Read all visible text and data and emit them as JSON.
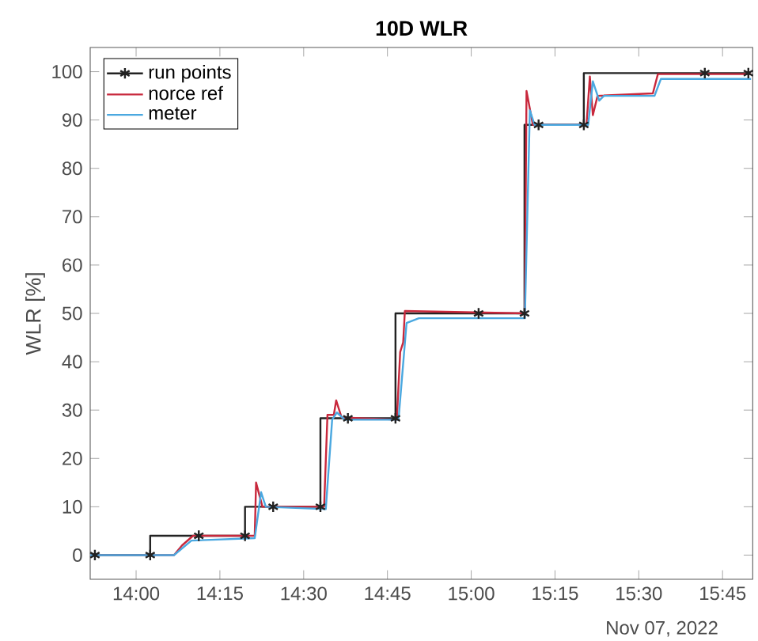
{
  "chart_data": {
    "type": "line",
    "title": "10D WLR",
    "ylabel": "WLR [%]",
    "annotations": [
      "Nov 07, 2022"
    ],
    "xlim": [
      13.863,
      15.84
    ],
    "ylim": [
      -5,
      105
    ],
    "xticks": [
      {
        "value": 14,
        "label": "14:00"
      },
      {
        "value": 14.25,
        "label": "14:15"
      },
      {
        "value": 14.5,
        "label": "14:30"
      },
      {
        "value": 14.75,
        "label": "14:45"
      },
      {
        "value": 15,
        "label": "15:00"
      },
      {
        "value": 15.25,
        "label": "15:15"
      },
      {
        "value": 15.5,
        "label": "15:30"
      },
      {
        "value": 15.75,
        "label": "15:45"
      }
    ],
    "yticks": [
      0,
      10,
      20,
      30,
      40,
      50,
      60,
      70,
      80,
      90,
      100
    ],
    "grid": false,
    "legend": "top left",
    "line_style": "solid",
    "series": [
      {
        "name": "run points",
        "color": "#222222",
        "marker": "cross",
        "type": "step",
        "x": [
          13.877,
          14.042,
          14.187,
          14.325,
          14.409,
          14.55,
          14.632,
          14.774,
          15.022,
          15.159,
          15.201,
          15.336,
          15.697,
          15.827
        ],
        "values": [
          0,
          0,
          4,
          4,
          10,
          10,
          28.3,
          28.3,
          50,
          50,
          89,
          89,
          99.7,
          99.7
        ]
      },
      {
        "name": "norce ref",
        "color": "#c8283c",
        "marker": "none",
        "x": [
          13.863,
          14.113,
          14.137,
          14.17,
          14.354,
          14.358,
          14.377,
          14.561,
          14.571,
          14.59,
          14.597,
          14.613,
          14.778,
          14.788,
          14.797,
          14.802,
          15.16,
          15.165,
          15.184,
          15.344,
          15.354,
          15.363,
          15.377,
          15.542,
          15.557,
          15.835
        ],
        "values": [
          0,
          0,
          2,
          4,
          4,
          15,
          10,
          10,
          29,
          29,
          32,
          28.5,
          28,
          42,
          44,
          50.5,
          50,
          96,
          89,
          89,
          99,
          91,
          95,
          95.5,
          99.5,
          99.5
        ]
      },
      {
        "name": "meter",
        "color": "#4aa8e0",
        "marker": "none",
        "x": [
          13.863,
          14.113,
          14.165,
          14.354,
          14.373,
          14.387,
          14.566,
          14.585,
          14.599,
          14.623,
          14.783,
          14.807,
          14.844,
          15.16,
          15.175,
          15.189,
          15.349,
          15.363,
          15.382,
          15.396,
          15.547,
          15.566,
          15.835
        ],
        "values": [
          0,
          0,
          3,
          3.5,
          13,
          10,
          9.5,
          28,
          29.5,
          28,
          28,
          48,
          49,
          49,
          92,
          89,
          89,
          98,
          94,
          95,
          95,
          98.5,
          98.5
        ]
      }
    ]
  }
}
